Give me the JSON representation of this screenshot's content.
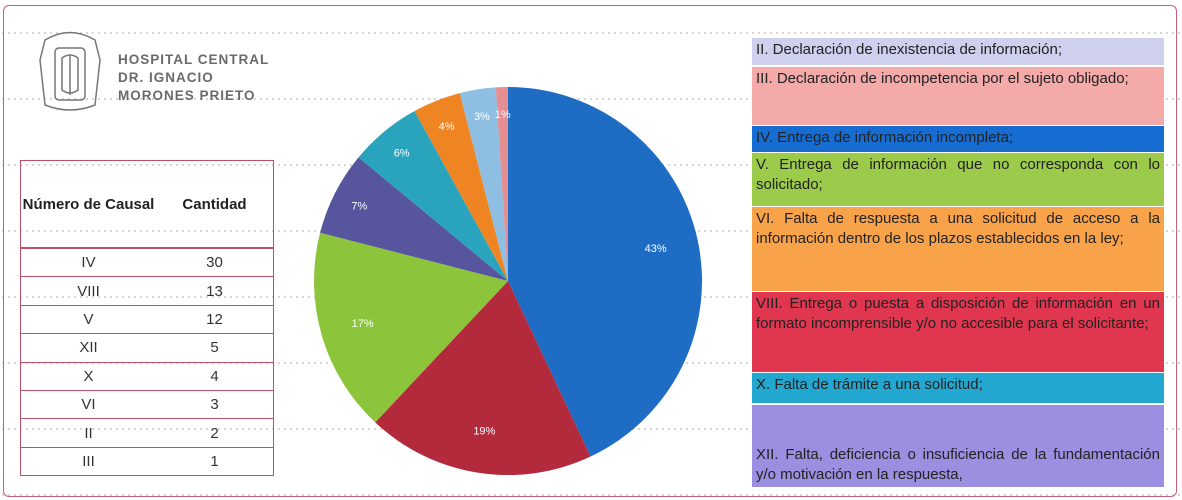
{
  "header": {
    "lines": [
      "HOSPITAL CENTRAL",
      "DR. IGNACIO",
      "MORONES PRIETO"
    ]
  },
  "table": {
    "columns": [
      "Número de Causal",
      "Cantidad"
    ],
    "rows": [
      [
        "IV",
        30
      ],
      [
        "VIII",
        13
      ],
      [
        "V",
        12
      ],
      [
        "XII",
        5
      ],
      [
        "X",
        4
      ],
      [
        "VI",
        3
      ],
      [
        "II",
        2
      ],
      [
        "III",
        1
      ]
    ]
  },
  "chart_data": {
    "type": "pie",
    "values": [
      43,
      19,
      17,
      7,
      6,
      4,
      3,
      1
    ],
    "value_labels": [
      "43%",
      "19%",
      "17%",
      "7%",
      "6%",
      "4%",
      "3%",
      "1%"
    ],
    "colors": [
      "#1f6cc4",
      "#b32a3c",
      "#8cc43c",
      "#57559e",
      "#2aa3bd",
      "#ee8522",
      "#8ebee2",
      "#e58f93"
    ]
  },
  "legend": [
    {
      "text": "II. Declaración de inexistencia de información;",
      "color": "#cfcfee"
    },
    {
      "text": "III. Declaración de incompetencia por el sujeto obligado;",
      "color": "#f3aaa9"
    },
    {
      "text": "IV. Entrega de información incompleta;",
      "color": "#166cd0"
    },
    {
      "text": "V. Entrega de información que no corresponda con lo solicitado;",
      "color": "#9ccb4c"
    },
    {
      "text": "VI. Falta de respuesta a una solicitud de acceso a la información dentro de los plazos establecidos en la ley;",
      "color": "#f8a24a"
    },
    {
      "text": "VIII. Entrega o puesta a disposición de información en un formato incomprensible y/o no accesible para el solicitante;",
      "color": "#e0364f"
    },
    {
      "text": "X. Falta de trámite a una solicitud;",
      "color": "#22a8d0"
    },
    {
      "text": "XII. Falta, deficiencia o insuficiencia de la fundamentación y/o motivación en la respuesta,",
      "color": "#9a8fe0"
    }
  ]
}
